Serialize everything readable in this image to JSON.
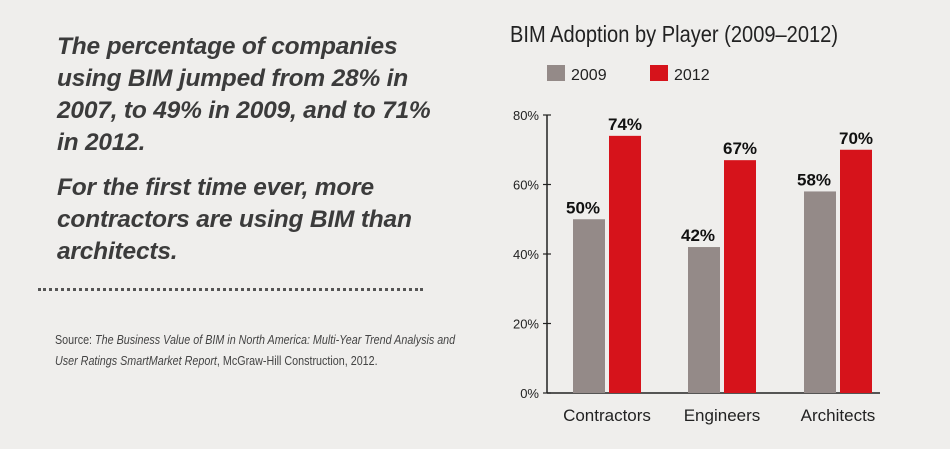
{
  "text": {
    "paragraph1": "The percentage of companies using BIM jumped from 28% in 2007, to 49% in 2009, and to 71% in 2012.",
    "paragraph2": "For the first time ever, more contractors are using BIM than architects.",
    "source_label": "Source:",
    "source_title": "The Business Value of BIM in North America: Multi-Year Trend Analysis and User Ratings SmartMarket Report",
    "source_rest": ", McGraw-Hill Construction, 2012."
  },
  "chart_data": {
    "type": "bar",
    "title": "BIM Adoption by Player (2009–2012)",
    "categories": [
      "Contractors",
      "Engineers",
      "Architects"
    ],
    "series": [
      {
        "name": "2009",
        "values": [
          50,
          42,
          58
        ],
        "color": "#948a88"
      },
      {
        "name": "2012",
        "values": [
          74,
          67,
          70
        ],
        "color": "#d6131b"
      }
    ],
    "data_labels": [
      [
        "50%",
        "42%",
        "58%"
      ],
      [
        "74%",
        "67%",
        "70%"
      ]
    ],
    "ylim": [
      0,
      80
    ],
    "yticks": [
      "0%",
      "20%",
      "40%",
      "60%",
      "80%"
    ],
    "xlabel": "",
    "ylabel": "",
    "grid": false,
    "legend": "top-left"
  }
}
